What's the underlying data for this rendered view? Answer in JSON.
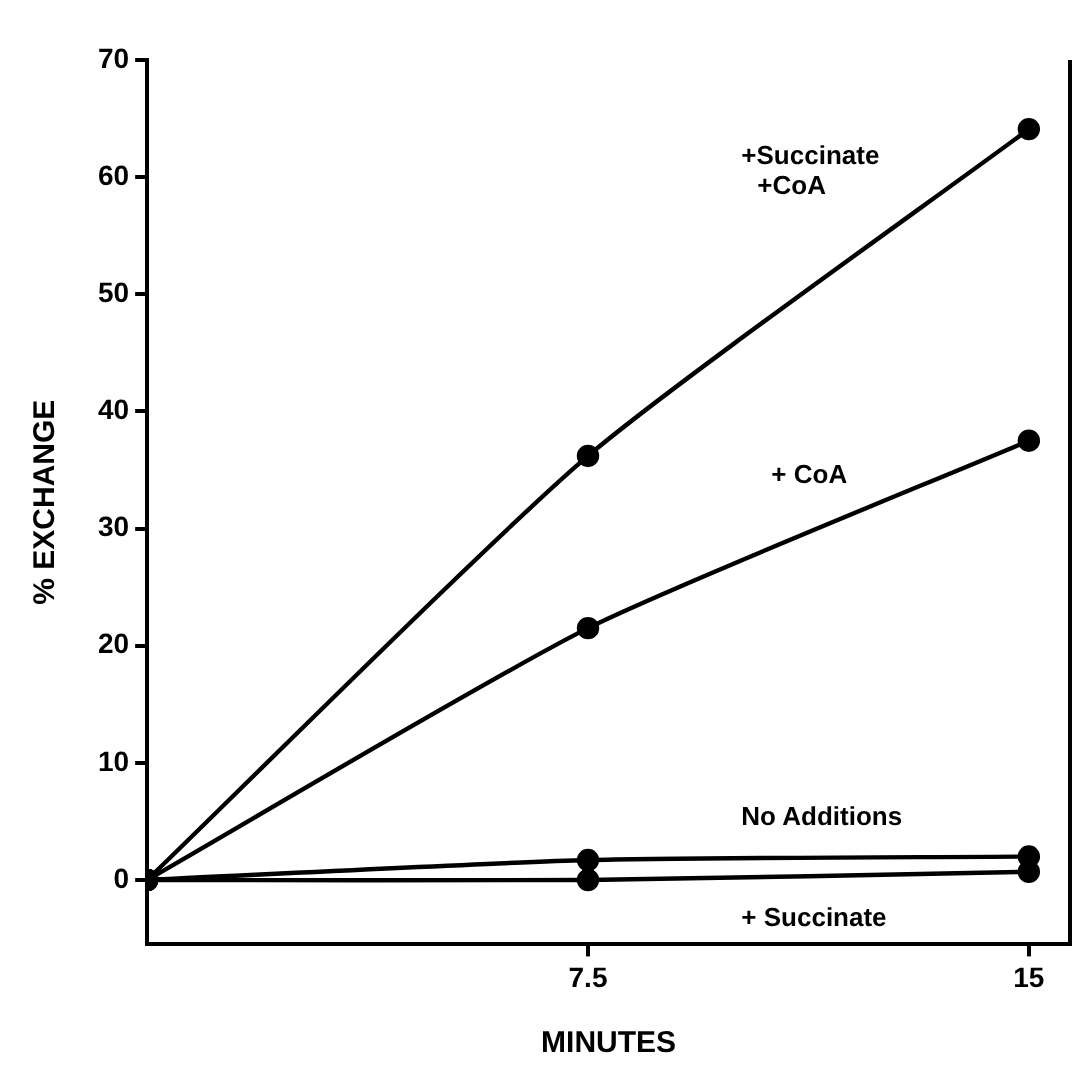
{
  "chart_data": {
    "type": "line",
    "xlabel": "MINUTES",
    "ylabel": "% EXCHANGE",
    "x": [
      0,
      7.5,
      15
    ],
    "series": [
      {
        "name": "+Succinate +CoA",
        "color": "#000000",
        "values": [
          0,
          36.2,
          64.1
        ]
      },
      {
        "name": "+ CoA",
        "color": "#000000",
        "values": [
          0,
          21.5,
          37.5
        ]
      },
      {
        "name": "No Additions",
        "color": "#000000",
        "values": [
          0,
          1.7,
          2.0
        ]
      },
      {
        "name": "+ Succinate",
        "color": "#000000",
        "values": [
          0,
          0,
          0.7
        ]
      }
    ],
    "xlim": [
      0,
      15.7
    ],
    "xticks": [
      7.5,
      15
    ],
    "ylim": [
      -5.5,
      70
    ],
    "yticks": [
      0,
      10,
      20,
      30,
      40,
      50,
      60,
      70
    ],
    "grid": false,
    "legend": false,
    "marker": "circle",
    "line_style": "solid"
  }
}
